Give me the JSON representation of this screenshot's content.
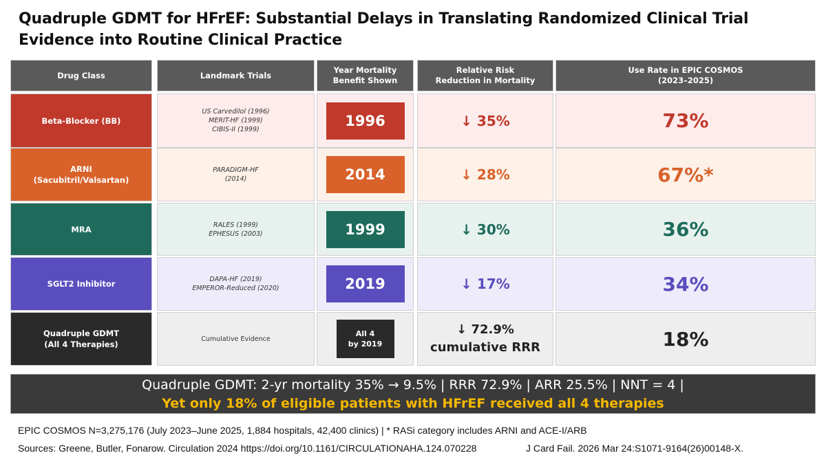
{
  "title": "Quadruple GDMT for HFrEF: Substantial Delays in Translating Randomized Clinical Trial Evidence into Routine Clinical Practice",
  "headers": {
    "drug_class": "Drug Class",
    "landmark_trials": "Landmark Trials",
    "year_line1": "Year Mortality",
    "year_line2": "Benefit Shown",
    "rrr_line1": "Relative Risk",
    "rrr_line2": "Reduction in Mortality",
    "use_line1": "Use Rate in EPIC COSMOS",
    "use_line2": "(2023–2025)"
  },
  "rows": [
    {
      "class_lines": [
        "Beta-Blocker (BB)"
      ],
      "trials": [
        "US Carvedilol (1996)",
        "MERIT-HF (1999)",
        "CIBIS-II (1999)"
      ],
      "year": "1996",
      "rrr": "↓ 35%",
      "use": "73%",
      "colors": {
        "accent": "#c0392b",
        "tint": "#fdeceb",
        "text": "#c0392b"
      }
    },
    {
      "class_lines": [
        "ARNI",
        "(Sacubitril/Valsartan)"
      ],
      "trials": [
        "PARADIGM-HF",
        "(2014)"
      ],
      "year": "2014",
      "rrr": "↓ 28%",
      "use": "67%*",
      "colors": {
        "accent": "#d9622b",
        "tint": "#fdf1e8",
        "text": "#d9622b"
      }
    },
    {
      "class_lines": [
        "MRA"
      ],
      "trials": [
        "RALES (1999)",
        "EPHESUS (2003)"
      ],
      "year": "1999",
      "rrr": "↓ 30%",
      "use": "36%",
      "colors": {
        "accent": "#1e6b5c",
        "tint": "#e7f2ee",
        "text": "#1e6b5c"
      }
    },
    {
      "class_lines": [
        "SGLT2 Inhibitor"
      ],
      "trials": [
        "DAPA-HF (2019)",
        "EMPEROR-Reduced (2020)"
      ],
      "year": "2019",
      "rrr": "↓ 17%",
      "use": "34%",
      "colors": {
        "accent": "#5a4dbd",
        "tint": "#eeecfa",
        "text": "#5a4dbd"
      }
    },
    {
      "class_lines": [
        "Quadruple GDMT",
        "(All 4 Therapies)"
      ],
      "trials": [
        "Cumulative Evidence"
      ],
      "year_lines": [
        "All 4",
        "by 2019"
      ],
      "rrr_lines": [
        "↓ 72.9%",
        "cumulative RRR"
      ],
      "use": "18%",
      "colors": {
        "accent": "#2a2a2a",
        "tint": "#eeeeee",
        "text": "#222222"
      }
    }
  ],
  "banner": {
    "line1": "Quadruple GDMT: 2-yr mortality 35% → 9.5% | RRR 72.9% | ARR 25.5% | NNT = 4 |",
    "line2": "Yet only 18% of eligible patients with HFrEF received all 4 therapies"
  },
  "footer": {
    "line1": "EPIC COSMOS N=3,275,176 (July 2023–June 2025, 1,884 hospitals, 42,400 clinics) | *  RASi category includes ARNI and ACE-I/ARB",
    "sources": "Sources: Greene, Butler, Fonarow. Circulation 2024 https://doi.org/10.1161/CIRCULATIONAHA.124.070228",
    "citation": "J Card Fail. 2026 Mar 24:S1071-9164(26)00148-X."
  }
}
